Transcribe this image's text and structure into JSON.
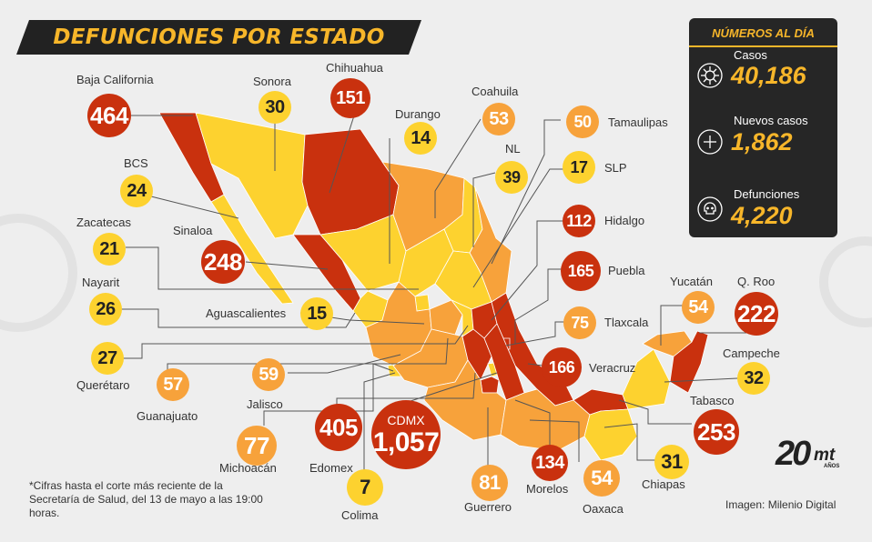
{
  "title": "DEFUNCIONES POR ESTADO",
  "panel": {
    "title": "NÚMEROS AL DÍA",
    "stats": [
      {
        "label": "Casos",
        "value": "40,186",
        "icon": "virus-icon"
      },
      {
        "label": "Nuevos casos",
        "value": "1,862",
        "icon": "plus-icon"
      },
      {
        "label": "Defunciones",
        "value": "4,220",
        "icon": "skull-icon"
      }
    ]
  },
  "states": [
    {
      "name": "Baja California",
      "value": "464",
      "color": "red"
    },
    {
      "name": "Sonora",
      "value": "30",
      "color": "yellow"
    },
    {
      "name": "Chihuahua",
      "value": "151",
      "color": "red"
    },
    {
      "name": "Durango",
      "value": "14",
      "color": "yellow"
    },
    {
      "name": "Coahuila",
      "value": "53",
      "color": "orange"
    },
    {
      "name": "Tamaulipas",
      "value": "50",
      "color": "orange"
    },
    {
      "name": "NL",
      "value": "39",
      "color": "yellow"
    },
    {
      "name": "SLP",
      "value": "17",
      "color": "yellow"
    },
    {
      "name": "BCS",
      "value": "24",
      "color": "yellow"
    },
    {
      "name": "Hidalgo",
      "value": "112",
      "color": "red"
    },
    {
      "name": "Zacatecas",
      "value": "21",
      "color": "yellow"
    },
    {
      "name": "Sinaloa",
      "value": "248",
      "color": "red"
    },
    {
      "name": "Puebla",
      "value": "165",
      "color": "red"
    },
    {
      "name": "Nayarit",
      "value": "26",
      "color": "yellow"
    },
    {
      "name": "Aguascalientes",
      "value": "15",
      "color": "yellow"
    },
    {
      "name": "Tlaxcala",
      "value": "75",
      "color": "orange"
    },
    {
      "name": "Yucatán",
      "value": "54",
      "color": "orange"
    },
    {
      "name": "Q. Roo",
      "value": "222",
      "color": "red"
    },
    {
      "name": "Querétaro",
      "value": "27",
      "color": "yellow"
    },
    {
      "name": "Campeche",
      "value": "32",
      "color": "yellow"
    },
    {
      "name": "Guanajuato",
      "value": "57",
      "color": "orange"
    },
    {
      "name": "Jalisco",
      "value": "59",
      "color": "orange"
    },
    {
      "name": "Veracruz",
      "value": "166",
      "color": "red"
    },
    {
      "name": "Tabasco",
      "value": "253",
      "color": "red"
    },
    {
      "name": "Edomex",
      "value": "405",
      "color": "red"
    },
    {
      "name": "CDMX",
      "value": "1,057",
      "color": "red"
    },
    {
      "name": "Michoacán",
      "value": "77",
      "color": "orange"
    },
    {
      "name": "Colima",
      "value": "7",
      "color": "yellow"
    },
    {
      "name": "Guerrero",
      "value": "81",
      "color": "orange"
    },
    {
      "name": "Morelos",
      "value": "134",
      "color": "red"
    },
    {
      "name": "Oaxaca",
      "value": "54",
      "color": "orange"
    },
    {
      "name": "Chiapas",
      "value": "31",
      "color": "yellow"
    }
  ],
  "colors": {
    "yellow": "#fdd22f",
    "orange": "#f7a23b",
    "red": "#c9310e",
    "accent": "#f7b62a",
    "panel": "#262626"
  },
  "footnote": "*Cifras hasta el corte más reciente de la Secretaría de Salud, del 13 de mayo a las 19:00 horas.",
  "credit": "Imagen: Milenio Digital",
  "logo": {
    "number": "20",
    "brand": "mt",
    "sub": "AÑOS"
  }
}
